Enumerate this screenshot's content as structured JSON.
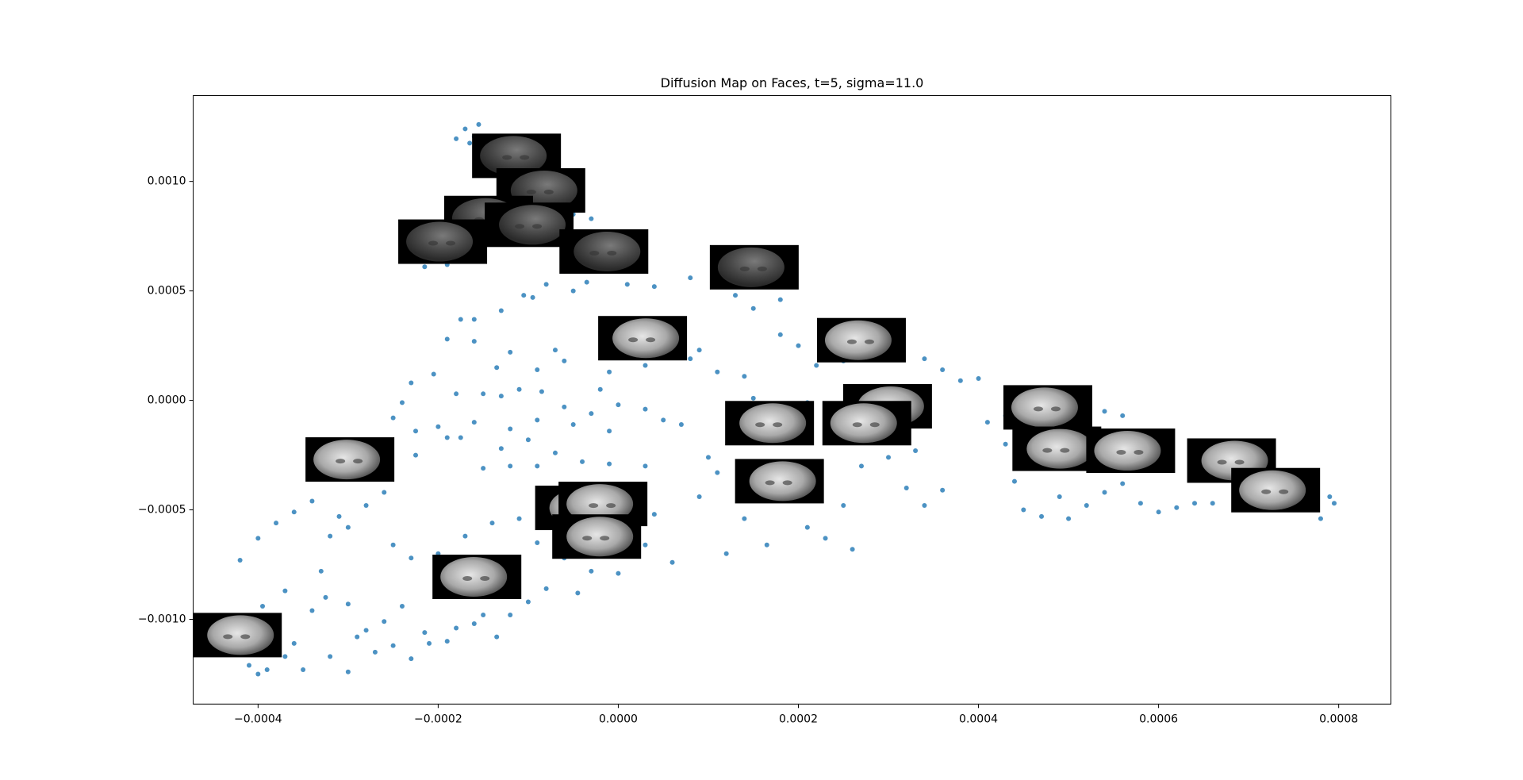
{
  "chart_data": {
    "type": "scatter",
    "title": "Diffusion Map on Faces, t=5, sigma=11.0",
    "color": "#1f77b4",
    "xlim": [
      -0.000472,
      0.000858
    ],
    "ylim": [
      -0.001387,
      0.001392
    ],
    "xticks": [
      {
        "value": -0.0004,
        "label": "−0.0004"
      },
      {
        "value": -0.0002,
        "label": "−0.0002"
      },
      {
        "value": 0,
        "label": "0.0000"
      },
      0.0002,
      0.0004,
      0.0006,
      0.0008
    ],
    "yticks": [
      {
        "value": -0.001,
        "label": "−0.0010"
      },
      {
        "value": -0.0005,
        "label": "−0.0005"
      },
      {
        "value": 0,
        "label": "0.0000"
      },
      0.0005,
      {
        "value": 0.001,
        "label": "0.0010"
      }
    ],
    "x": [
      -0.000155,
      -0.00017,
      -0.00016,
      -0.00014,
      -0.00013,
      -0.00018,
      -0.00012,
      -0.00015,
      -0.00011,
      -0.000165,
      -5e-05,
      -3e-05,
      -7e-05,
      -0.0001,
      -0.00019,
      -0.000215,
      -4e-05,
      -2e-05,
      -6e-05,
      -8e-05,
      -5e-05,
      -3.5e-05,
      1e-05,
      4e-05,
      8e-05,
      -0.000105,
      -9.5e-05,
      -0.00013,
      -0.00016,
      -0.000175,
      -0.00019,
      -0.00016,
      -0.00012,
      -7e-05,
      -6e-05,
      -9e-05,
      -0.000135,
      -0.000205,
      -0.00023,
      -0.00018,
      -0.00015,
      -0.00011,
      -8.5e-05,
      -6e-05,
      -3e-05,
      3e-05,
      5e-05,
      -1e-05,
      -5e-05,
      -9e-05,
      -0.00012,
      -0.00016,
      -0.0002,
      -0.000225,
      -0.00025,
      -0.00024,
      -0.000175,
      -0.00013,
      -0.0001,
      -7e-05,
      -4e-05,
      -1e-05,
      3e-05,
      7e-05,
      0.0001,
      0.00011,
      -0.00015,
      -0.00012,
      -0.00019,
      -0.000225,
      -0.00026,
      -0.00028,
      -0.00031,
      -0.00034,
      -0.00036,
      -0.00038,
      -0.0003,
      -0.00032,
      -0.00025,
      -0.00023,
      -0.0002,
      -0.00017,
      -0.00014,
      -0.00011,
      -9e-05,
      -6e-05,
      -3e-05,
      0,
      4e-05,
      6e-05,
      3e-05,
      -8e-05,
      -4.5e-05,
      -0.0001,
      -0.00012,
      -0.000135,
      -0.00016,
      -0.00019,
      -0.000215,
      -0.00024,
      -0.00026,
      -0.00028,
      -0.0003,
      -0.000325,
      -0.00034,
      -0.00036,
      -0.00037,
      -0.00039,
      -0.0004,
      -0.00041,
      -0.00035,
      -0.00032,
      -0.0003,
      -0.00029,
      -0.00027,
      -0.00025,
      -0.00023,
      -0.00021,
      -0.00018,
      -0.00015,
      -0.0004,
      -0.00042,
      -0.000395,
      -0.00037,
      -0.00033,
      0.00012,
      9e-05,
      0.00014,
      0.000165,
      0.00021,
      0.00023,
      0.00026,
      0.00025,
      0.00027,
      0.0003,
      0.00032,
      0.00034,
      0.00036,
      0.00028,
      0.00033,
      0.00034,
      0.00036,
      0.00038,
      0.0004,
      0.00041,
      0.00043,
      0.00044,
      0.00045,
      0.00047,
      0.00049,
      0.0005,
      0.00052,
      0.00054,
      0.00056,
      0.00058,
      0.0006,
      0.00062,
      0.00064,
      0.00066,
      0.0007,
      0.00074,
      0.00076,
      0.00078,
      0.000795,
      0.00079,
      0.00047,
      0.00049,
      0.00054,
      0.00056,
      0.00043,
      0.00013,
      0.00015,
      0.000165,
      0.00015,
      0.00014,
      0.00018,
      0.0002,
      0.00023,
      0.00025,
      0.00022,
      0.00021,
      0.00024,
      0.00015,
      0.00016,
      0.00011,
      9e-05,
      6e-05,
      8e-05,
      3e-05,
      -1e-05,
      -2e-05,
      0,
      0.00018,
      -0.00013,
      -9e-05,
      -6e-05,
      -1e-05
    ],
    "y": [
      0.00126,
      0.00124,
      0.001205,
      0.00118,
      0.00116,
      0.001195,
      0.00113,
      0.00115,
      0.00112,
      0.001175,
      0.00085,
      0.00083,
      0.00078,
      0.00075,
      0.00062,
      0.00061,
      0.0007,
      0.00068,
      0.00059,
      0.00053,
      0.0005,
      0.00054,
      0.00053,
      0.00052,
      0.00056,
      0.00048,
      0.00047,
      0.00041,
      0.00037,
      0.00037,
      0.00028,
      0.00027,
      0.00022,
      0.00023,
      0.00018,
      0.00014,
      0.00015,
      0.00012,
      8e-05,
      3e-05,
      3e-05,
      5e-05,
      4e-05,
      -3e-05,
      -6e-05,
      -4e-05,
      -9e-05,
      -0.00014,
      -0.00011,
      -9e-05,
      -0.00013,
      -0.0001,
      -0.00012,
      -0.00014,
      -8e-05,
      -1e-05,
      -0.00017,
      -0.00022,
      -0.00018,
      -0.00024,
      -0.00028,
      -0.00029,
      -0.0003,
      -0.00011,
      -0.00026,
      -0.00033,
      -0.00031,
      -0.0003,
      -0.00017,
      -0.00025,
      -0.00042,
      -0.00048,
      -0.00053,
      -0.00046,
      -0.00051,
      -0.00056,
      -0.00058,
      -0.00062,
      -0.00066,
      -0.00072,
      -0.0007,
      -0.00062,
      -0.00056,
      -0.00054,
      -0.00065,
      -0.00072,
      -0.00078,
      -0.00079,
      -0.00052,
      -0.00074,
      -0.00066,
      -0.00086,
      -0.00088,
      -0.00092,
      -0.00098,
      -0.00108,
      -0.00102,
      -0.0011,
      -0.00106,
      -0.00094,
      -0.00101,
      -0.00105,
      -0.00093,
      -0.0009,
      -0.00096,
      -0.00111,
      -0.00117,
      -0.00123,
      -0.00125,
      -0.00121,
      -0.00123,
      -0.00117,
      -0.00124,
      -0.00108,
      -0.00115,
      -0.00112,
      -0.00118,
      -0.00111,
      -0.00104,
      -0.00098,
      -0.00063,
      -0.00073,
      -0.00094,
      -0.00087,
      -0.00078,
      -0.0007,
      -0.00044,
      -0.00054,
      -0.00066,
      -0.00058,
      -0.00063,
      -0.00068,
      -0.00048,
      -0.0003,
      -0.00026,
      -0.0004,
      -0.00048,
      -0.00041,
      -0.00014,
      -0.00023,
      0.00019,
      0.00014,
      9e-05,
      0.0001,
      -0.0001,
      -0.0002,
      -0.00037,
      -0.0005,
      -0.00053,
      -0.00044,
      -0.00054,
      -0.00048,
      -0.00042,
      -0.00038,
      -0.00047,
      -0.00051,
      -0.00049,
      -0.00047,
      -0.00047,
      -0.00042,
      -0.00039,
      -0.00043,
      -0.00054,
      -0.00047,
      -0.00044,
      5e-05,
      4e-05,
      -5e-05,
      -7e-05,
      -7e-05,
      0.00048,
      0.00042,
      -3e-05,
      1e-05,
      0.00011,
      0.0003,
      0.00025,
      0.0003,
      0.00018,
      0.00016,
      -1e-05,
      -0.00016,
      -0.00045,
      -0.0003,
      0.00013,
      0.00023,
      0.00036,
      0.00019,
      0.00016,
      0.00013,
      5e-05,
      -2e-05,
      0.00046,
      2e-05,
      -0.0003,
      -0.0006,
      -0.00042
    ],
    "thumbnails": {
      "x": [
        -0.000113,
        -8.6e-05,
        -0.000144,
        -9.9e-05,
        -0.000195,
        -1.6e-05,
        0.000151,
        2.7e-05,
        0.00027,
        0.000299,
        0.000477,
        0.000168,
        0.000276,
        0.000487,
        0.000569,
        0.000681,
        -0.000298,
        0.000179,
        0.00073,
        -4.3e-05,
        -1.7e-05,
        -2.4e-05,
        -0.000157,
        -0.000423
      ],
      "y": [
        0.001117,
        0.000959,
        0.000833,
        0.000802,
        0.000725,
        0.00068,
        0.000608,
        0.000284,
        0.000275,
        -2.7e-05,
        -3.2e-05,
        -0.000104,
        -0.000104,
        -0.000221,
        -0.00023,
        -0.000275,
        -0.00027,
        -0.000369,
        -0.00041,
        -0.000491,
        -0.000473,
        -0.000622,
        -0.000806,
        -0.001072
      ]
    }
  }
}
